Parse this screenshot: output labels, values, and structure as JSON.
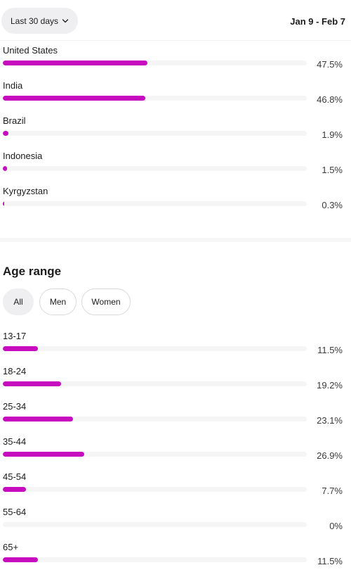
{
  "header": {
    "range_button_label": "Last 30 days",
    "date_range": "Jan 9 - Feb 7"
  },
  "countries": [
    {
      "label": "United States",
      "percent_text": "47.5%",
      "value": 47.5
    },
    {
      "label": "India",
      "percent_text": "46.8%",
      "value": 46.8
    },
    {
      "label": "Brazil",
      "percent_text": "1.9%",
      "value": 1.9
    },
    {
      "label": "Indonesia",
      "percent_text": "1.5%",
      "value": 1.5
    },
    {
      "label": "Kyrgyzstan",
      "percent_text": "0.3%",
      "value": 0.3
    }
  ],
  "age_section": {
    "title": "Age range",
    "filters": [
      {
        "label": "All",
        "active": true
      },
      {
        "label": "Men",
        "active": false
      },
      {
        "label": "Women",
        "active": false
      }
    ],
    "rows": [
      {
        "label": "13-17",
        "percent_text": "11.5%",
        "value": 11.5
      },
      {
        "label": "18-24",
        "percent_text": "19.2%",
        "value": 19.2
      },
      {
        "label": "25-34",
        "percent_text": "23.1%",
        "value": 23.1
      },
      {
        "label": "35-44",
        "percent_text": "26.9%",
        "value": 26.9
      },
      {
        "label": "45-54",
        "percent_text": "7.7%",
        "value": 7.7
      },
      {
        "label": "55-64",
        "percent_text": "0%",
        "value": 0
      },
      {
        "label": "65+",
        "percent_text": "11.5%",
        "value": 11.5
      }
    ]
  },
  "colors": {
    "bar_fill": "#c70cbf",
    "track": "#f5f5f6"
  },
  "icons": {
    "range_chevron": "chevron-down-icon"
  }
}
